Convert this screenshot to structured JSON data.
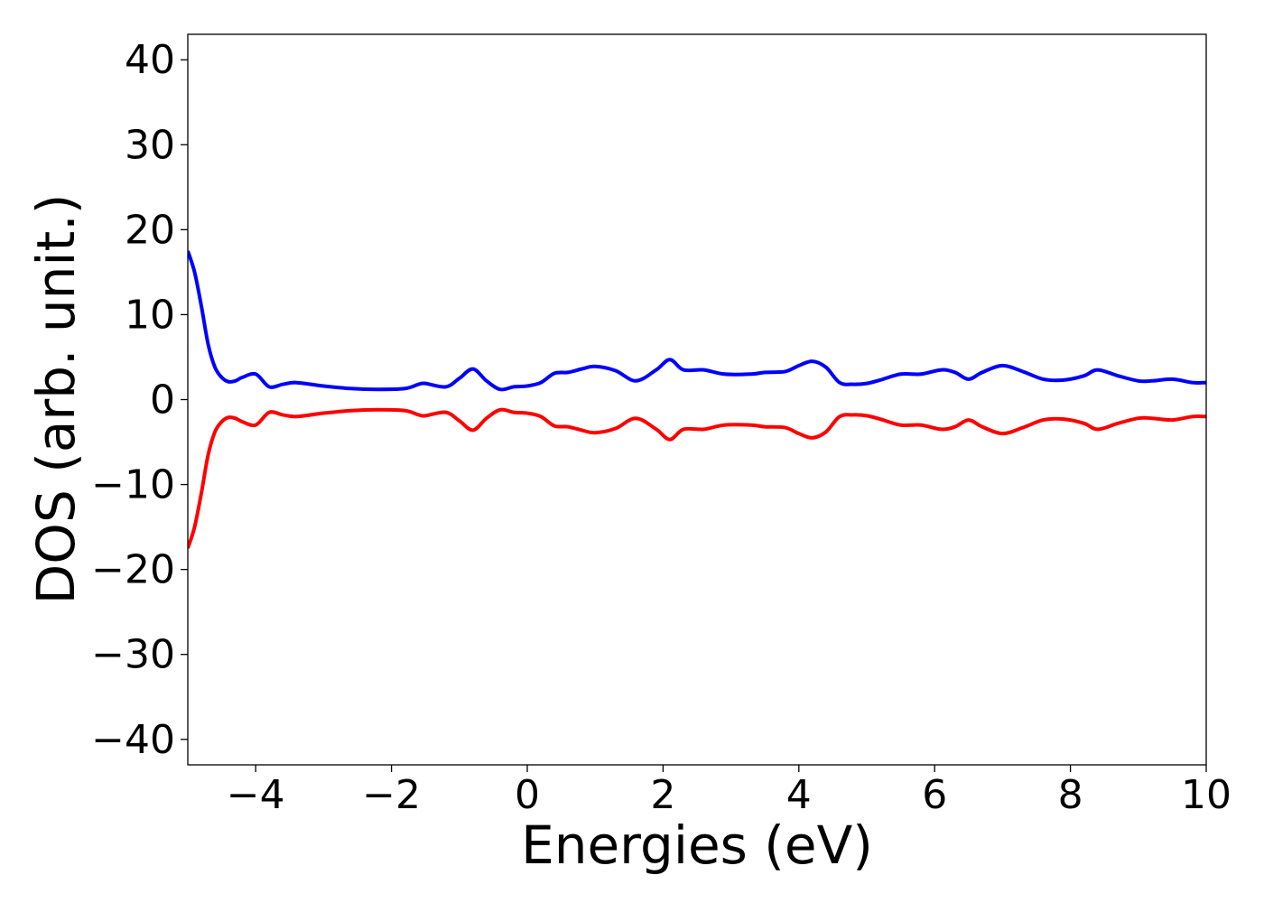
{
  "chart_data": {
    "type": "line",
    "title": "",
    "xlabel": "Energies (eV)",
    "ylabel": "DOS (arb. unit.)",
    "xlim": [
      -5,
      10
    ],
    "ylim": [
      -43,
      43
    ],
    "xticks": [
      -4,
      -2,
      0,
      2,
      4,
      6,
      8,
      10
    ],
    "yticks": [
      -40,
      -30,
      -20,
      -10,
      0,
      10,
      20,
      30,
      40
    ],
    "xtick_labels": [
      "−4",
      "−2",
      "0",
      "2",
      "4",
      "6",
      "8",
      "10"
    ],
    "ytick_labels": [
      "−40",
      "−30",
      "−20",
      "−10",
      "0",
      "10",
      "20",
      "30",
      "40"
    ],
    "grid": false,
    "legend": "none",
    "series": [
      {
        "color": "#0000ff",
        "x": [
          -5.0,
          -4.9,
          -4.8,
          -4.7,
          -4.6,
          -4.5,
          -4.4,
          -4.3,
          -4.2,
          -4.0,
          -3.8,
          -3.6,
          -3.4,
          -3.0,
          -2.6,
          -2.2,
          -1.8,
          -1.6,
          -1.5,
          -1.2,
          -1.0,
          -0.8,
          -0.6,
          -0.4,
          -0.2,
          0.0,
          0.2,
          0.4,
          0.6,
          0.8,
          1.0,
          1.3,
          1.6,
          1.9,
          2.1,
          2.3,
          2.6,
          2.9,
          3.3,
          3.5,
          3.8,
          4.0,
          4.2,
          4.4,
          4.6,
          4.8,
          5.0,
          5.2,
          5.5,
          5.8,
          6.1,
          6.3,
          6.5,
          6.7,
          7.0,
          7.3,
          7.6,
          7.9,
          8.2,
          8.4,
          8.7,
          9.0,
          9.2,
          9.5,
          9.8,
          10.0
        ],
        "y": [
          17.5,
          15.0,
          11.0,
          6.5,
          3.8,
          2.6,
          2.1,
          2.2,
          2.6,
          3.0,
          1.5,
          1.8,
          2.0,
          1.6,
          1.3,
          1.2,
          1.3,
          1.8,
          1.9,
          1.5,
          2.5,
          3.6,
          2.2,
          1.2,
          1.5,
          1.6,
          2.0,
          3.1,
          3.2,
          3.6,
          3.9,
          3.4,
          2.2,
          3.5,
          4.7,
          3.5,
          3.5,
          3.0,
          3.0,
          3.2,
          3.3,
          4.0,
          4.5,
          3.8,
          2.0,
          1.8,
          1.9,
          2.3,
          3.0,
          3.0,
          3.5,
          3.2,
          2.4,
          3.2,
          4.0,
          3.3,
          2.4,
          2.3,
          2.8,
          3.5,
          2.8,
          2.2,
          2.2,
          2.4,
          2.0,
          2.0
        ]
      },
      {
        "color": "#ff0000",
        "x": [
          -5.0,
          -4.9,
          -4.8,
          -4.7,
          -4.6,
          -4.5,
          -4.4,
          -4.3,
          -4.2,
          -4.0,
          -3.8,
          -3.6,
          -3.4,
          -3.0,
          -2.6,
          -2.2,
          -1.8,
          -1.6,
          -1.5,
          -1.2,
          -1.0,
          -0.8,
          -0.6,
          -0.4,
          -0.2,
          0.0,
          0.2,
          0.4,
          0.6,
          0.8,
          1.0,
          1.3,
          1.6,
          1.9,
          2.1,
          2.3,
          2.6,
          2.9,
          3.3,
          3.5,
          3.8,
          4.0,
          4.2,
          4.4,
          4.6,
          4.8,
          5.0,
          5.2,
          5.5,
          5.8,
          6.1,
          6.3,
          6.5,
          6.7,
          7.0,
          7.3,
          7.6,
          7.9,
          8.2,
          8.4,
          8.7,
          9.0,
          9.2,
          9.5,
          9.8,
          10.0
        ],
        "y": [
          -17.5,
          -15.0,
          -11.0,
          -6.5,
          -3.8,
          -2.6,
          -2.1,
          -2.2,
          -2.6,
          -3.0,
          -1.5,
          -1.8,
          -2.0,
          -1.6,
          -1.3,
          -1.2,
          -1.3,
          -1.8,
          -1.9,
          -1.5,
          -2.5,
          -3.6,
          -2.2,
          -1.2,
          -1.5,
          -1.6,
          -2.0,
          -3.1,
          -3.2,
          -3.6,
          -3.9,
          -3.4,
          -2.2,
          -3.5,
          -4.7,
          -3.5,
          -3.5,
          -3.0,
          -3.0,
          -3.2,
          -3.3,
          -4.0,
          -4.5,
          -3.8,
          -2.0,
          -1.8,
          -1.9,
          -2.3,
          -3.0,
          -3.0,
          -3.5,
          -3.2,
          -2.4,
          -3.2,
          -4.0,
          -3.3,
          -2.4,
          -2.3,
          -2.8,
          -3.5,
          -2.8,
          -2.2,
          -2.2,
          -2.4,
          -2.0,
          -2.0
        ]
      }
    ]
  }
}
